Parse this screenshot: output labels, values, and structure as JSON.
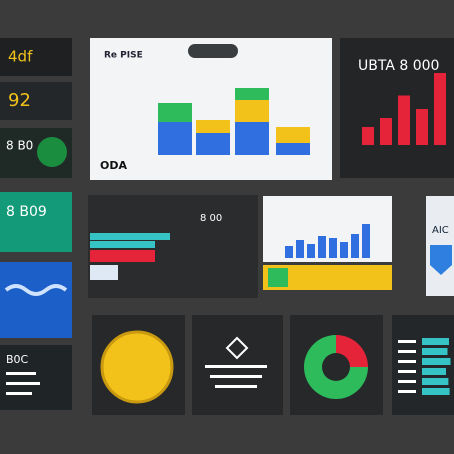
{
  "tiles": [
    "4df",
    "92",
    "8 B0",
    "8 B09",
    "B0C"
  ],
  "stacked": {
    "type": "bar",
    "title": "Re PISE",
    "badge": "ODA",
    "ylim": [
      0,
      70
    ],
    "series": [
      {
        "color": "#2f6fe0",
        "values": [
          33,
          22,
          33,
          12
        ]
      },
      {
        "color": "#2dbb5c",
        "values": [
          19,
          0,
          0,
          0
        ]
      },
      {
        "color": "#f2c21b",
        "values": [
          0,
          13,
          22,
          16
        ]
      },
      {
        "color": "#2dbb5c",
        "values": [
          0,
          0,
          12,
          0
        ]
      }
    ]
  },
  "red_bars": {
    "type": "bar",
    "title": "UBTA 8 000",
    "color": "#e5243a",
    "ylim": [
      0,
      100
    ],
    "values": [
      20,
      30,
      55,
      40,
      80
    ]
  },
  "hbars": {
    "type": "bar",
    "label": "8 00",
    "xlim": [
      0,
      100
    ],
    "colors": [
      "#35c3c6",
      "#35c3c6",
      "#e5243a",
      "#dfe9f5"
    ],
    "values": [
      80,
      65,
      65,
      28
    ]
  },
  "mini_bars": {
    "type": "bar",
    "color": "#2f6fe0",
    "ylim": [
      0,
      40
    ],
    "values": [
      12,
      18,
      14,
      22,
      20,
      16,
      24,
      34
    ]
  },
  "side": "AIC",
  "donut": {
    "type": "pie",
    "colors": [
      "#e5243a",
      "#2dbb5c"
    ],
    "values": [
      25,
      75
    ]
  },
  "teal_bars": {
    "type": "bar",
    "color": "#35c3c6",
    "xlim": [
      0,
      100
    ],
    "values": [
      90,
      85,
      95,
      80,
      88,
      92
    ]
  }
}
